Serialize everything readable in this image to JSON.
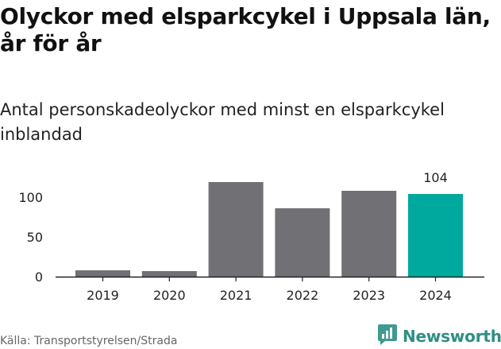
{
  "title_line1": "Olyckor med elsparkcykel i Uppsala län,",
  "title_line2": "år för år",
  "subtitle_line1": "Antal personskadeolyckor med minst en elsparkcykel",
  "subtitle_line2": "inblandad",
  "source": "Källa: Transportstyrelsen/Strada",
  "brand": {
    "name": "Newsworthy",
    "icon": "newsworthy-logo-icon"
  },
  "colors": {
    "bar": "#717075",
    "highlight": "#00a99d",
    "axis": "#222222",
    "grid": "#e6e6e6"
  },
  "chart_data": {
    "type": "bar",
    "categories": [
      "2019",
      "2020",
      "2021",
      "2022",
      "2023",
      "2024"
    ],
    "values": [
      8,
      7,
      119,
      86,
      108,
      104
    ],
    "highlight_index": 5,
    "data_labels": [
      {
        "index": 5,
        "text": "104"
      }
    ],
    "yticks": [
      0,
      50,
      100
    ],
    "ylim": [
      0,
      125
    ],
    "xlabel": "",
    "ylabel": "",
    "grid": false,
    "legend": "none"
  }
}
